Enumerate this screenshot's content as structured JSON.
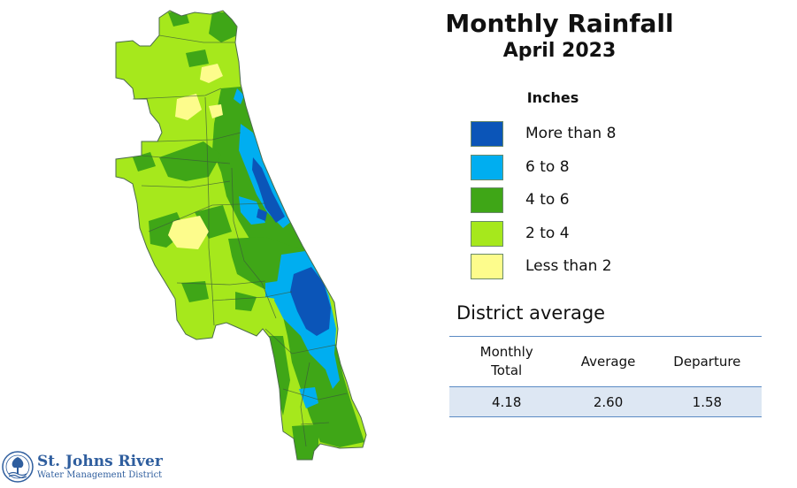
{
  "title": "Monthly Rainfall",
  "subtitle": "April 2023",
  "legend": {
    "units": "Inches",
    "items": [
      {
        "label": "More than 8",
        "color": "#0b55b8"
      },
      {
        "label": "6 to 8",
        "color": "#00aef0"
      },
      {
        "label": "4 to 6",
        "color": "#3fa617"
      },
      {
        "label": "2 to 4",
        "color": "#a6e81c"
      },
      {
        "label": "Less than 2",
        "color": "#fdfc8c"
      }
    ]
  },
  "district": {
    "title": "District average",
    "headers": {
      "col1": "Monthly Total",
      "col2": "Average",
      "col3": "Departure"
    },
    "values": {
      "monthly_total": "4.18",
      "average": "2.60",
      "departure": "1.58"
    }
  },
  "logo": {
    "name": "St. Johns River",
    "sub": "Water Management District"
  }
}
